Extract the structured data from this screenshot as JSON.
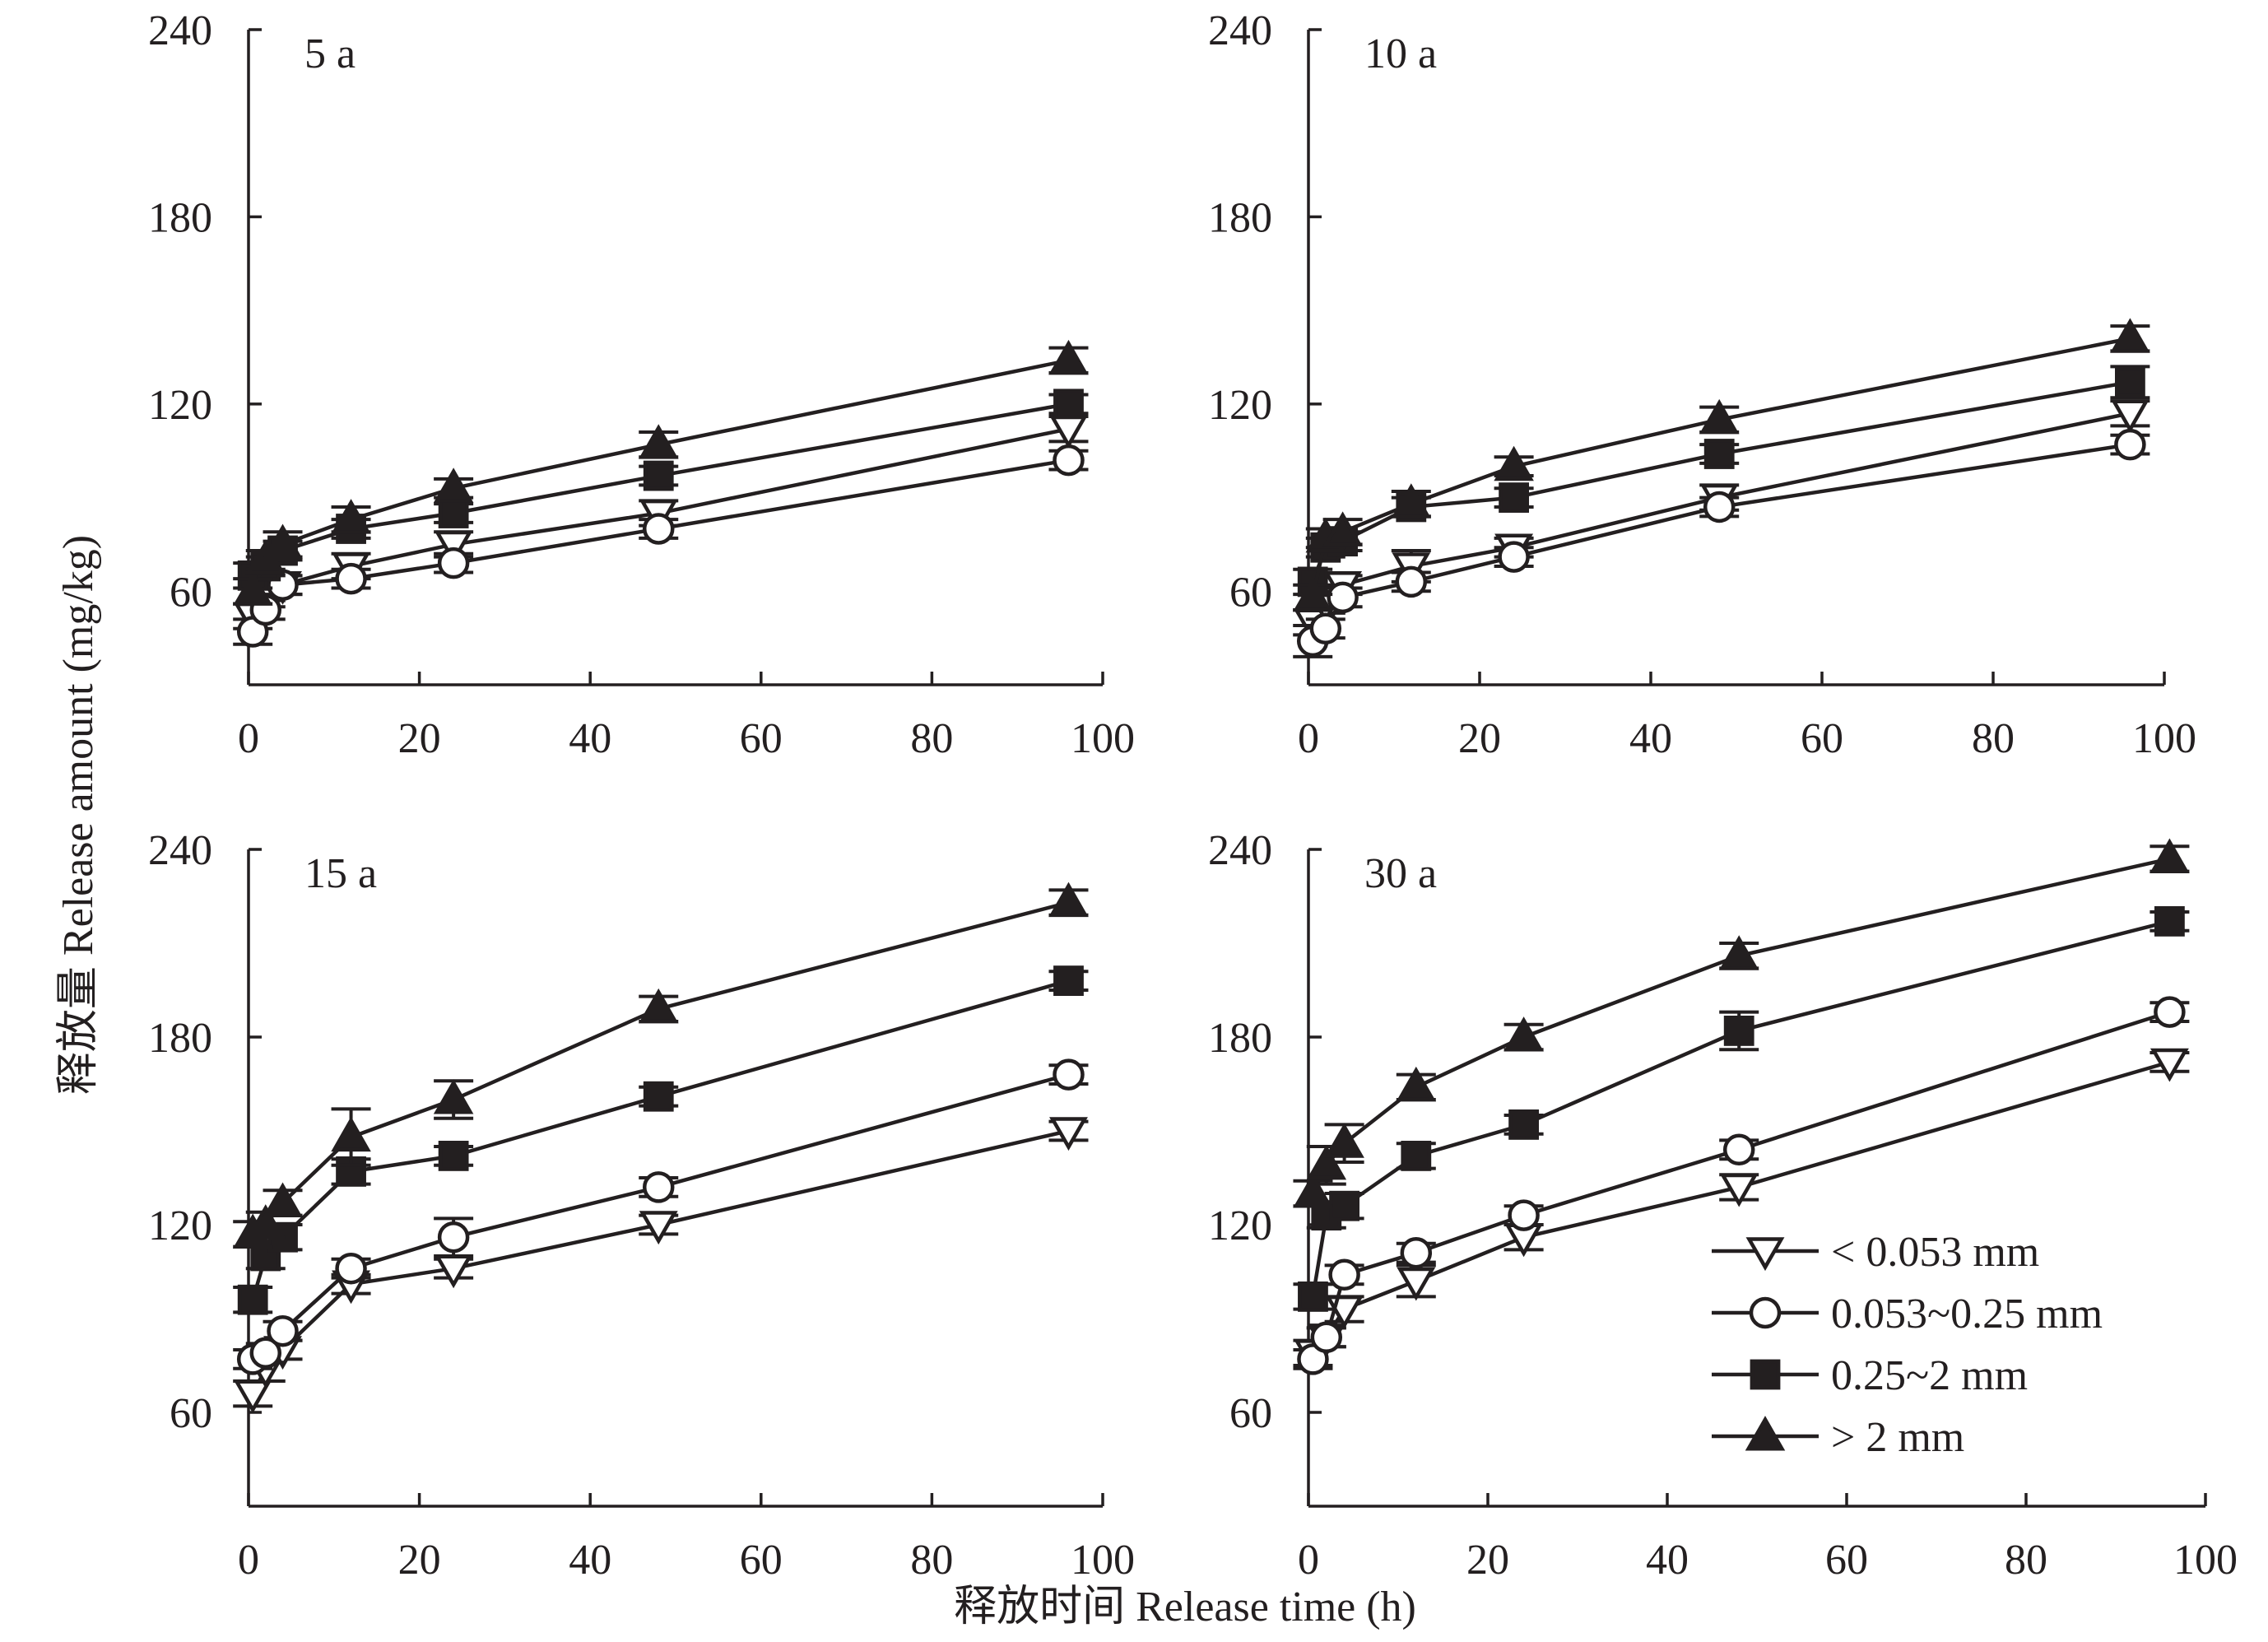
{
  "chart_data": {
    "type": "line",
    "xlabel": "释放时间 Release time (h)",
    "ylabel": "释放量 Release amount (mg/kg)",
    "xlim": [
      0,
      100
    ],
    "ylim": [
      30,
      240
    ],
    "xticks": [
      0,
      20,
      40,
      60,
      80,
      100
    ],
    "yticks": [
      60,
      120,
      180,
      240
    ],
    "grid": false,
    "legend_position": "bottom-right of last panel",
    "legend": [
      {
        "name": "< 0.053 mm",
        "marker": "triangle-down-open"
      },
      {
        "name": "0.053~0.25 mm",
        "marker": "circle-open"
      },
      {
        "name": "0.25~2 mm",
        "marker": "square-filled"
      },
      {
        "name": "> 2 mm",
        "marker": "triangle-up-filled"
      }
    ],
    "x": [
      0.5,
      2,
      4,
      12,
      24,
      48,
      96
    ],
    "panels": [
      {
        "label": "5 a",
        "series": [
          {
            "name": "< 0.053 mm",
            "marker": "triangle-down-open",
            "values": [
              52,
              58,
              62,
              68,
              75,
              85,
              112
            ],
            "errors": [
              4,
              3,
              3,
              4,
              4,
              4,
              4
            ]
          },
          {
            "name": "0.053~0.25 mm",
            "marker": "circle-open",
            "values": [
              47,
              54,
              62,
              64,
              69,
              80,
              102
            ],
            "errors": [
              4,
              3,
              3,
              3,
              3,
              3,
              3
            ]
          },
          {
            "name": "0.25~2 mm",
            "marker": "square-filled",
            "values": [
              65,
              68,
              73,
              80,
              85,
              97,
              120
            ],
            "errors": [
              4,
              3,
              3,
              3,
              3,
              3,
              3
            ]
          },
          {
            "name": "> 2 mm",
            "marker": "triangle-up-filled",
            "values": [
              60,
              70,
              75,
              83,
              93,
              107,
              134
            ],
            "errors": [
              4,
              3,
              4,
              4,
              3,
              4,
              4
            ]
          }
        ]
      },
      {
        "label": "10 a",
        "series": [
          {
            "name": "< 0.053 mm",
            "marker": "triangle-down-open",
            "values": [
              50,
              56,
              62,
              68,
              74,
              90,
              117
            ],
            "errors": [
              4,
              3,
              3,
              5,
              3,
              4,
              4
            ]
          },
          {
            "name": "0.053~0.25 mm",
            "marker": "circle-open",
            "values": [
              44,
              48,
              58,
              63,
              71,
              87,
              107
            ],
            "errors": [
              5,
              3,
              3,
              3,
              3,
              3,
              3
            ]
          },
          {
            "name": "0.25~2 mm",
            "marker": "square-filled",
            "values": [
              63,
              74,
              76,
              87,
              90,
              104,
              127
            ],
            "errors": [
              4,
              3,
              3,
              3,
              3,
              3,
              5
            ]
          },
          {
            "name": "> 2 mm",
            "marker": "triangle-up-filled",
            "values": [
              58,
              77,
              79,
              88,
              100,
              115,
              141
            ],
            "errors": [
              4,
              3,
              4,
              4,
              3,
              4,
              4
            ]
          }
        ]
      },
      {
        "label": "15 a",
        "series": [
          {
            "name": "< 0.053 mm",
            "marker": "triangle-down-open",
            "values": [
              66,
              74,
              80,
              101,
              106,
              120,
              150
            ],
            "errors": [
              4,
              4,
              3,
              3,
              3,
              3,
              3
            ]
          },
          {
            "name": "0.053~0.25 mm",
            "marker": "circle-open",
            "values": [
              77,
              79,
              86,
              106,
              116,
              132,
              168
            ],
            "errors": [
              3,
              3,
              3,
              3,
              6,
              3,
              3
            ]
          },
          {
            "name": "0.25~2 mm",
            "marker": "square-filled",
            "values": [
              96,
              110,
              116,
              137,
              142,
              161,
              198
            ],
            "errors": [
              4,
              4,
              4,
              4,
              3,
              3,
              3
            ]
          },
          {
            "name": "> 2 mm",
            "marker": "triangle-up-filled",
            "values": [
              117,
              120,
              127,
              148,
              160,
              189,
              223
            ],
            "errors": [
              4,
              4,
              4,
              9,
              6,
              4,
              4
            ]
          }
        ]
      },
      {
        "label": "30 a",
        "series": [
          {
            "name": "< 0.053 mm",
            "marker": "triangle-down-open",
            "values": [
              79,
              84,
              93,
              102,
              116,
              132,
              172
            ],
            "errors": [
              4,
              3,
              4,
              5,
              4,
              4,
              3
            ]
          },
          {
            "name": "0.053~0.25 mm",
            "marker": "circle-open",
            "values": [
              77,
              84,
              104,
              111,
              123,
              144,
              188
            ],
            "errors": [
              3,
              3,
              3,
              3,
              3,
              3,
              3
            ]
          },
          {
            "name": "0.25~2 mm",
            "marker": "square-filled",
            "values": [
              97,
              123,
              126,
              142,
              152,
              182,
              217
            ],
            "errors": [
              4,
              4,
              4,
              4,
              3,
              6,
              3
            ]
          },
          {
            "name": "> 2 mm",
            "marker": "triangle-up-filled",
            "values": [
              130,
              139,
              146,
              164,
              180,
              206,
              237
            ],
            "errors": [
              4,
              6,
              6,
              4,
              4,
              4,
              4
            ]
          }
        ]
      }
    ]
  }
}
